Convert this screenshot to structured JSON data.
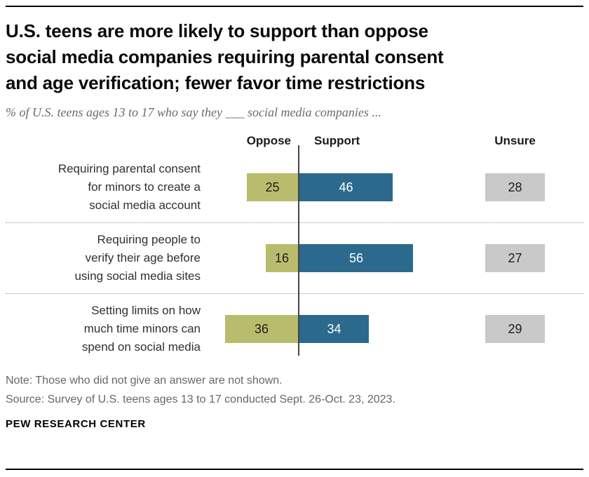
{
  "header": {
    "title": "U.S. teens are more likely to support than oppose\nsocial media companies requiring parental consent\nand age verification; fewer favor time restrictions",
    "subtitle": "% of U.S. teens ages 13 to 17 who say they ___ social media companies ..."
  },
  "chart_data": {
    "type": "bar",
    "layout": "diverging-horizontal",
    "columns": [
      "Oppose",
      "Support",
      "Unsure"
    ],
    "colors": {
      "oppose": "#b9bc6d",
      "support": "#2b6a8c",
      "unsure": "#c9c9c9",
      "oppose_text": "#1f1f1f",
      "support_text": "#ffffff",
      "unsure_text": "#1f1f1f"
    },
    "rows": [
      {
        "label_lines": [
          "Requiring parental consent",
          "for minors to create a",
          "social media account"
        ],
        "oppose": 25,
        "support": 46,
        "unsure": 28
      },
      {
        "label_lines": [
          "Requiring people to",
          "verify their age before",
          "using social media sites"
        ],
        "oppose": 16,
        "support": 56,
        "unsure": 27
      },
      {
        "label_lines": [
          "Setting limits on how",
          "much time minors can",
          "spend on social media"
        ],
        "oppose": 36,
        "support": 34,
        "unsure": 29
      }
    ]
  },
  "footer": {
    "note": "Note: Those who did not give an answer are not shown.",
    "source": "Source: Survey of U.S. teens ages 13 to 17 conducted Sept. 26-Oct. 23, 2023.",
    "brand": "PEW RESEARCH CENTER"
  }
}
